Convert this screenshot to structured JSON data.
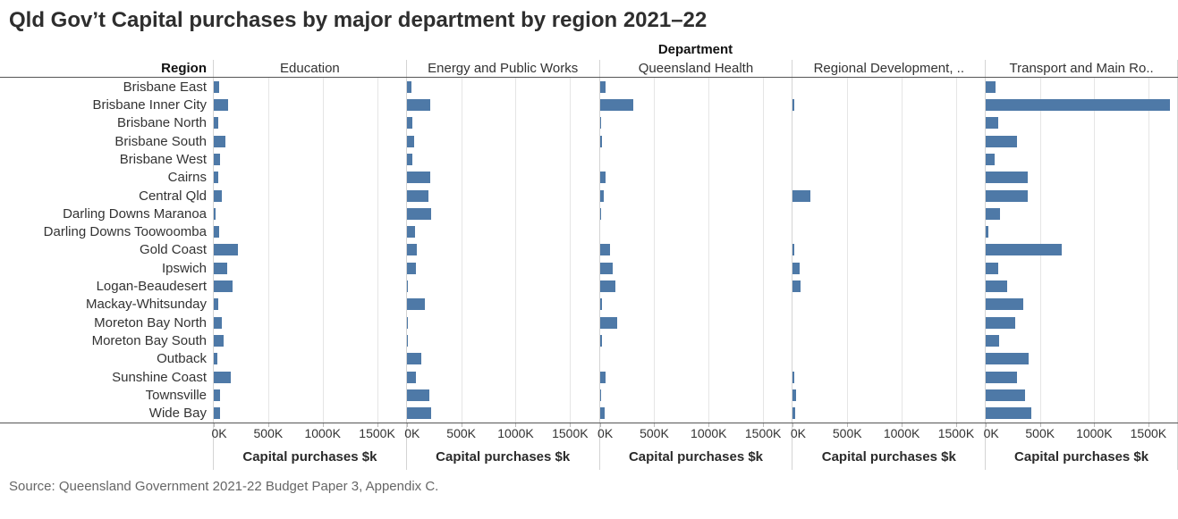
{
  "title": "Qld Gov’t Capital purchases by major department by region 2021–22",
  "source": "Source: Queensland Government 2021-22 Budget Paper 3, Appendix C.",
  "colors": {
    "bar": "#4e79a7",
    "axis_line": "#555555",
    "panel_divider": "#d4d4d4",
    "gridline": "#e5e5e5",
    "source_text": "#666666"
  },
  "chart_data": {
    "type": "bar",
    "orientation": "horizontal",
    "title": "Qld Gov’t Capital purchases by major department by region 2021–22",
    "col_header": "Department",
    "row_header": "Region",
    "xlabel": "Capital purchases $k",
    "x_ticks": [
      "0K",
      "500K",
      "1000K",
      "1500K"
    ],
    "x_tick_values": [
      0,
      500,
      1000,
      1500
    ],
    "xlim": [
      0,
      1765
    ],
    "grid": "vertical-light",
    "unit": "thousands of dollars ($k)",
    "categories": [
      "Brisbane East",
      "Brisbane Inner City",
      "Brisbane North",
      "Brisbane South",
      "Brisbane West",
      "Cairns",
      "Central Qld",
      "Darling Downs Maranoa",
      "Darling Downs Toowoomba",
      "Gold Coast",
      "Ipswich",
      "Logan-Beaudesert",
      "Mackay-Whitsunday",
      "Moreton Bay North",
      "Moreton Bay South",
      "Outback",
      "Sunshine Coast",
      "Townsville",
      "Wide Bay"
    ],
    "series": [
      {
        "name": "Education",
        "values": [
          50,
          130,
          40,
          105,
          55,
          45,
          70,
          20,
          50,
          220,
          125,
          170,
          45,
          70,
          90,
          30,
          155,
          60,
          60
        ]
      },
      {
        "name": "Energy and Public Works",
        "values": [
          40,
          215,
          55,
          65,
          50,
          215,
          200,
          225,
          75,
          95,
          80,
          10,
          165,
          10,
          5,
          130,
          80,
          205,
          225
        ]
      },
      {
        "name": "Queensland Health",
        "values": [
          50,
          310,
          10,
          20,
          0,
          50,
          40,
          10,
          0,
          95,
          120,
          140,
          20,
          160,
          20,
          0,
          55,
          15,
          45
        ]
      },
      {
        "name": "Regional Development, ..",
        "values": [
          0,
          10,
          0,
          0,
          0,
          0,
          160,
          0,
          0,
          10,
          65,
          70,
          0,
          0,
          0,
          0,
          10,
          30,
          25
        ]
      },
      {
        "name": "Transport and Main Ro..",
        "values": [
          90,
          1700,
          115,
          290,
          85,
          385,
          385,
          130,
          25,
          700,
          115,
          200,
          345,
          270,
          125,
          395,
          290,
          365,
          420
        ]
      }
    ]
  }
}
